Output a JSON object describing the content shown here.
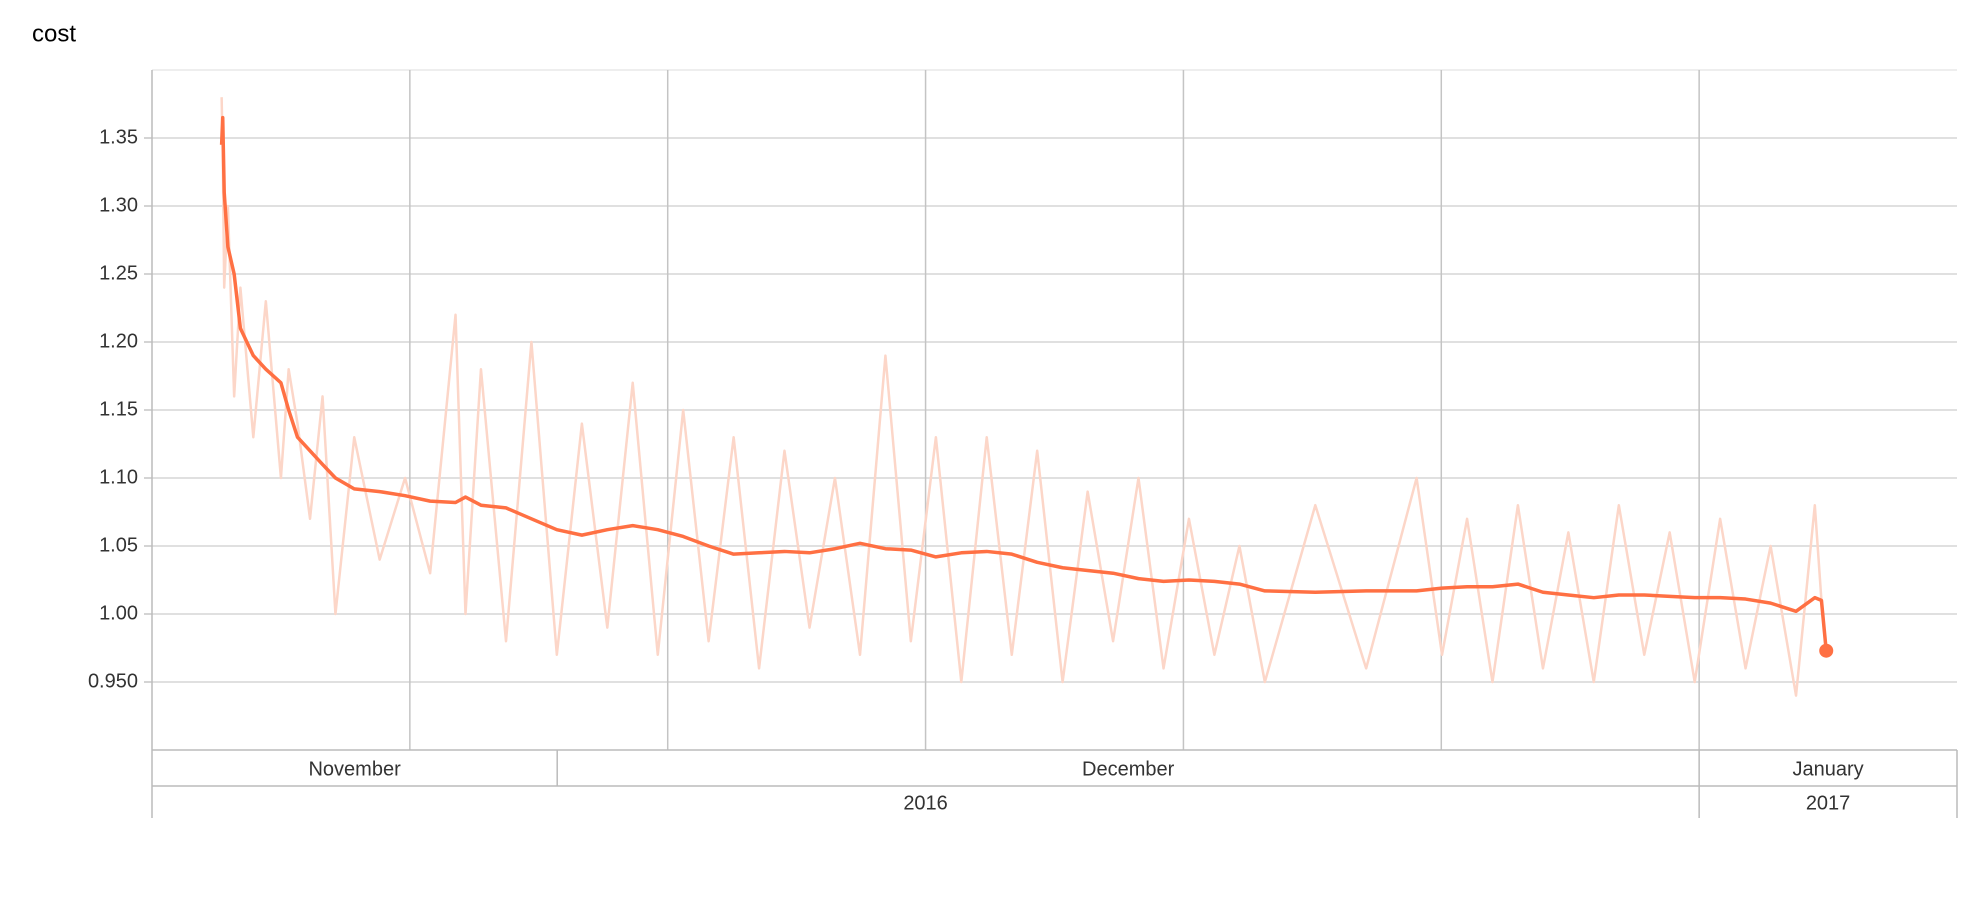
{
  "chart_data": {
    "type": "line",
    "title": "cost",
    "x": [
      20.89,
      20.92,
      20.96,
      21.06,
      21.23,
      21.4,
      21.75,
      22.09,
      22.5,
      22.71,
      22.95,
      23.29,
      23.63,
      23.98,
      24.49,
      25.18,
      25.87,
      26.55,
      27.24,
      27.51,
      27.93,
      28.61,
      29.3,
      29.99,
      30.67,
      31.36,
      32.05,
      32.73,
      33.42,
      34.11,
      34.79,
      35.48,
      36.17,
      36.85,
      37.54,
      38.22,
      38.91,
      39.6,
      40.28,
      40.97,
      41.66,
      42.34,
      43.03,
      43.72,
      44.4,
      45.09,
      45.78,
      46.46,
      47.15,
      47.84,
      48.52,
      49.21,
      50.58,
      51.96,
      53.33,
      54.02,
      54.7,
      55.39,
      56.08,
      56.76,
      57.45,
      58.14,
      58.82,
      59.51,
      60.2,
      60.88,
      61.57,
      62.26,
      62.94,
      63.63,
      64.14,
      64.32,
      64.45
    ],
    "series": [
      {
        "color": "#fcd6c8",
        "values": [
          1.38,
          1.34,
          1.24,
          1.3,
          1.16,
          1.24,
          1.13,
          1.23,
          1.1,
          1.18,
          1.14,
          1.07,
          1.16,
          1.0,
          1.13,
          1.04,
          1.1,
          1.03,
          1.22,
          1.0,
          1.18,
          0.98,
          1.2,
          0.97,
          1.14,
          0.99,
          1.17,
          0.97,
          1.15,
          0.98,
          1.13,
          0.96,
          1.12,
          0.99,
          1.1,
          0.97,
          1.19,
          0.98,
          1.13,
          0.95,
          1.13,
          0.97,
          1.12,
          0.95,
          1.09,
          0.98,
          1.1,
          0.96,
          1.07,
          0.97,
          1.05,
          0.95,
          1.08,
          0.96,
          1.1,
          0.97,
          1.07,
          0.95,
          1.08,
          0.96,
          1.06,
          0.95,
          1.08,
          0.97,
          1.06,
          0.95,
          1.07,
          0.96,
          1.05,
          0.94,
          1.08,
          1.01,
          0.97
        ]
      },
      {
        "color": "#ff7043",
        "values": [
          1.345,
          1.365,
          1.31,
          1.27,
          1.25,
          1.21,
          1.19,
          1.18,
          1.17,
          1.15,
          1.13,
          1.12,
          1.11,
          1.1,
          1.092,
          1.09,
          1.087,
          1.083,
          1.082,
          1.086,
          1.08,
          1.078,
          1.07,
          1.062,
          1.058,
          1.062,
          1.065,
          1.062,
          1.057,
          1.05,
          1.044,
          1.045,
          1.046,
          1.045,
          1.048,
          1.052,
          1.048,
          1.047,
          1.042,
          1.045,
          1.046,
          1.044,
          1.038,
          1.034,
          1.032,
          1.03,
          1.026,
          1.024,
          1.025,
          1.024,
          1.022,
          1.017,
          1.016,
          1.017,
          1.017,
          1.019,
          1.02,
          1.02,
          1.022,
          1.016,
          1.014,
          1.012,
          1.014,
          1.014,
          1.013,
          1.012,
          1.012,
          1.011,
          1.008,
          1.002,
          1.012,
          1.01,
          0.973
        ]
      }
    ],
    "xlim": [
      19,
      68
    ],
    "xticks": [
      26,
      33,
      40,
      47,
      54,
      61
    ],
    "ylim": [
      0.9,
      1.4
    ],
    "yticks": [
      {
        "value": 0.95,
        "label": "0.950"
      },
      {
        "value": 1.0,
        "label": "1.00"
      },
      1.05,
      {
        "value": 1.1,
        "label": "1.10"
      },
      1.15,
      {
        "value": 1.2,
        "label": "1.20"
      },
      1.25,
      {
        "value": 1.3,
        "label": "1.30"
      },
      1.35
    ],
    "grid": true,
    "months": [
      {
        "label": "November",
        "from": 19,
        "to": 30
      },
      {
        "label": "December",
        "from": 30,
        "to": 61
      },
      {
        "label": "January",
        "from": 61,
        "to": 68
      }
    ],
    "years": [
      {
        "label": "2016",
        "from": 19,
        "to": 61
      },
      {
        "label": "2017",
        "from": 61,
        "to": 68
      }
    ]
  }
}
